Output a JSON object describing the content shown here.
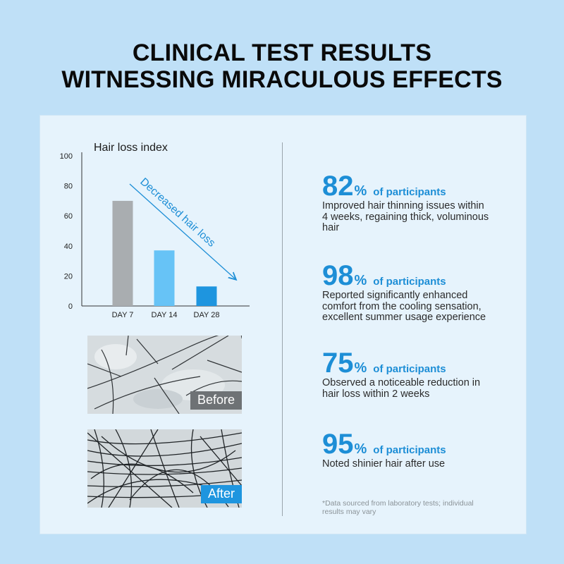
{
  "headline": {
    "line1": "CLINICAL TEST RESULTS",
    "line2": "WITNESSING MIRACULOUS EFFECTS"
  },
  "colors": {
    "background": "#bfe0f7",
    "accent": "#1d8ed6",
    "bar_day7": "#a9adb0",
    "bar_day14": "#67c3f6",
    "bar_day28": "#1e95df"
  },
  "chart_data": {
    "type": "bar",
    "title": "Hair loss index",
    "categories": [
      "DAY 7",
      "DAY 14",
      "DAY 28"
    ],
    "values": [
      70,
      37,
      13
    ],
    "ylim": [
      0,
      100
    ],
    "yticks": [
      0,
      20,
      40,
      60,
      80,
      100
    ],
    "annotation": "Decreased hair loss",
    "xlabel": "",
    "ylabel": ""
  },
  "photos": {
    "before_label": "Before",
    "after_label": "After"
  },
  "stats": [
    {
      "number": "82",
      "unit": "%",
      "label": "of participants",
      "desc_lines": [
        "Improved hair thinning issues within",
        "4 weeks, regaining thick, voluminous",
        "hair"
      ]
    },
    {
      "number": "98",
      "unit": "%",
      "label": "of participants",
      "desc_lines": [
        "Reported significantly enhanced",
        "comfort from the cooling sensation,",
        "excellent summer usage experience"
      ]
    },
    {
      "number": "75",
      "unit": "%",
      "label": "of participants",
      "desc_lines": [
        "Observed a noticeable reduction in",
        "hair loss within 2 weeks"
      ]
    },
    {
      "number": "95",
      "unit": "%",
      "label": "of participants",
      "desc_lines": [
        "Noted shinier hair after use"
      ]
    }
  ],
  "footnote": {
    "line1": "*Data sourced from laboratory tests; individual",
    "line2": "results may vary"
  }
}
